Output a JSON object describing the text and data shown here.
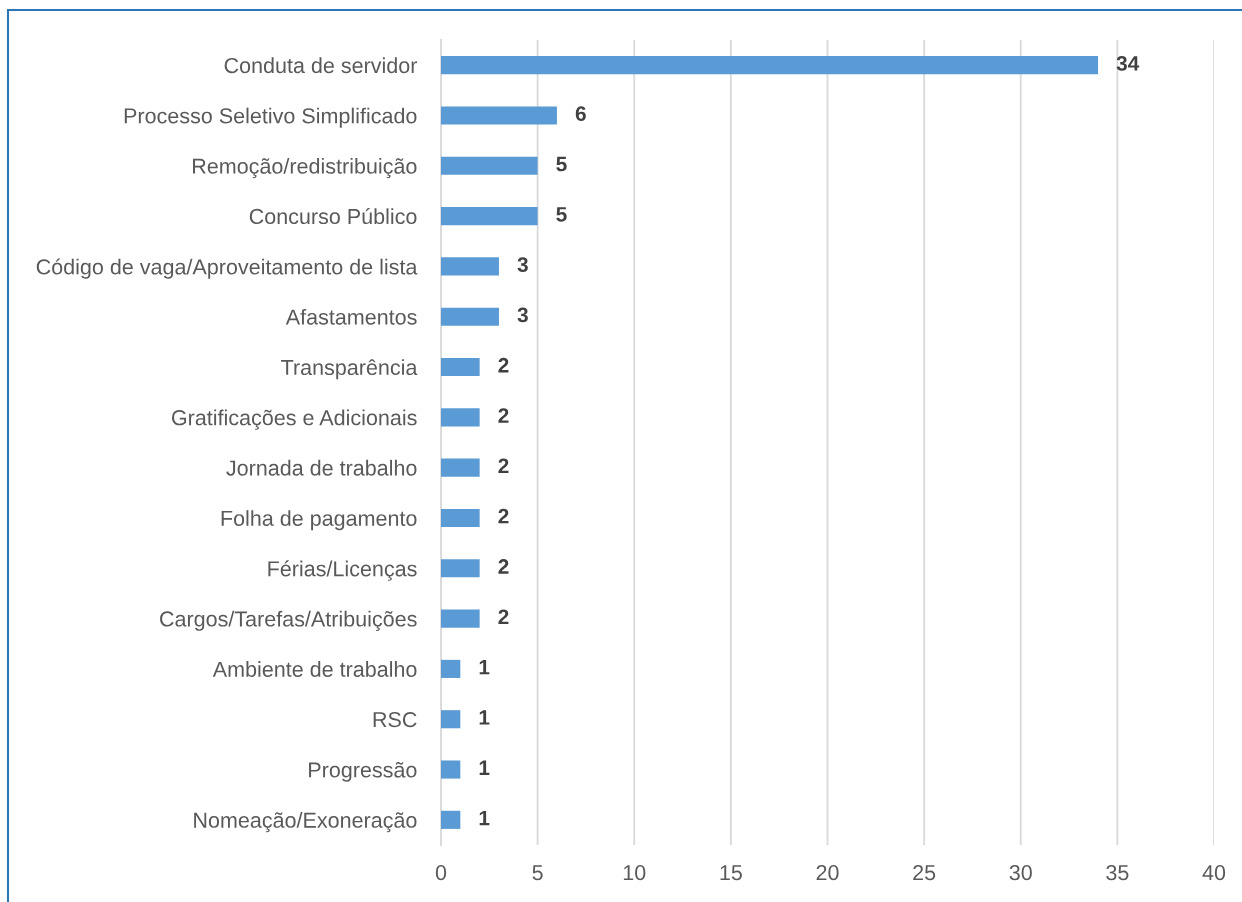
{
  "chart_data": {
    "type": "bar",
    "orientation": "horizontal",
    "categories": [
      "Conduta de servidor",
      "Processo Seletivo Simplificado",
      "Remoção/redistribuição",
      "Concurso Público",
      "Código de vaga/Aproveitamento de lista",
      "Afastamentos",
      "Transparência",
      "Gratificações e Adicionais",
      "Jornada de trabalho",
      "Folha de pagamento",
      "Férias/Licenças",
      "Cargos/Tarefas/Atribuições",
      "Ambiente de trabalho",
      "RSC",
      "Progressão",
      "Nomeação/Exoneração"
    ],
    "values": [
      34,
      6,
      5,
      5,
      3,
      3,
      2,
      2,
      2,
      2,
      2,
      2,
      1,
      1,
      1,
      1
    ],
    "color": "#5b9bd5",
    "xlim": [
      0,
      40
    ],
    "xticks": [
      0,
      5,
      10,
      15,
      20,
      25,
      30,
      35,
      40
    ],
    "grid": "x",
    "data_labels": true
  }
}
